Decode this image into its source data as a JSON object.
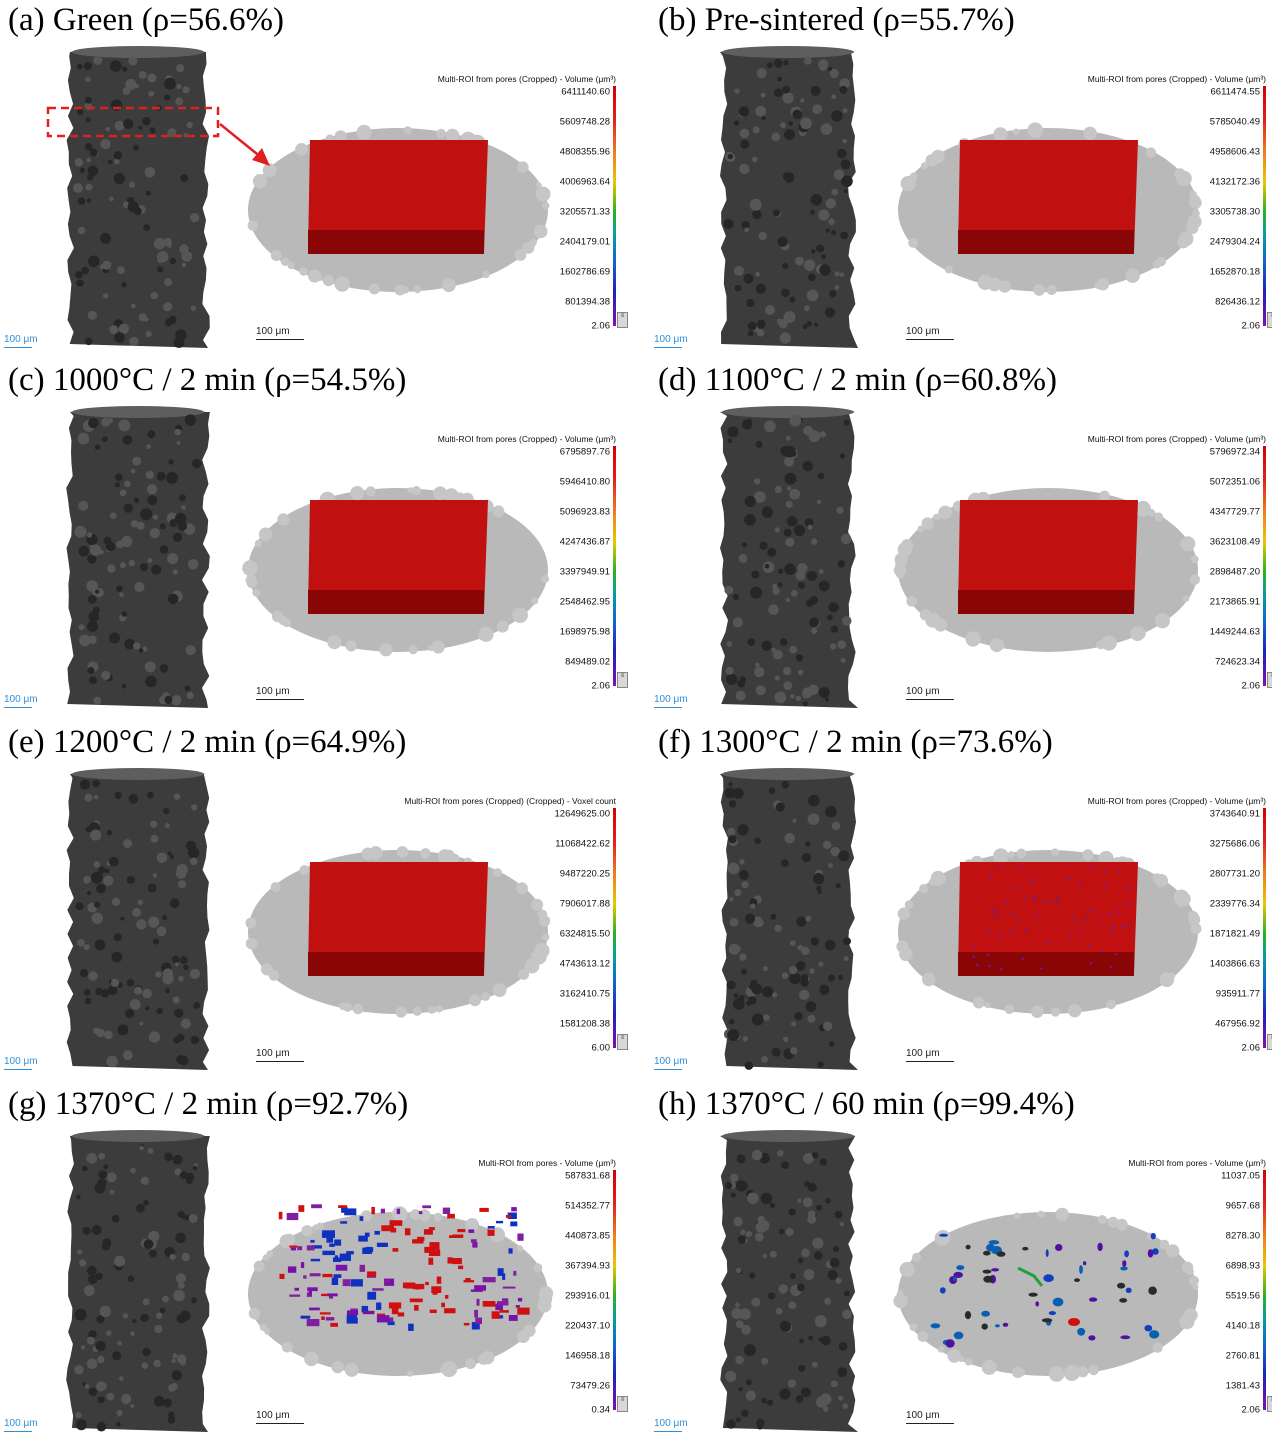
{
  "panels": [
    {
      "title": "(a) Green (ρ=56.6%)",
      "column_scale": "100 μm",
      "roi_scale": "100 μm",
      "colorbar_title": "Multi-ROI from pores (Cropped) - Volume (μm³)",
      "colorbar_ticks": [
        "6411140.60",
        "5609748.28",
        "4808355.96",
        "4006963.64",
        "3205571.33",
        "2404179.01",
        "1602786.69",
        "801394.38",
        "2.06"
      ],
      "pore_fill": "red-block"
    },
    {
      "title": "(b) Pre-sintered (ρ=55.7%)",
      "column_scale": "100 μm",
      "roi_scale": "100 μm",
      "colorbar_title": "Multi-ROI from pores (Cropped) - Volume (μm³)",
      "colorbar_ticks": [
        "6611474.55",
        "5785040.49",
        "4958606.43",
        "4132172.36",
        "3305738.30",
        "2479304.24",
        "1652870.18",
        "826436.12",
        "2.06"
      ],
      "pore_fill": "red-block"
    },
    {
      "title": "(c) 1000°C / 2 min (ρ=54.5%)",
      "column_scale": "100 μm",
      "roi_scale": "100 μm",
      "colorbar_title": "Multi-ROI from pores (Cropped) - Volume (μm³)",
      "colorbar_ticks": [
        "6795897.76",
        "5946410.80",
        "5096923.83",
        "4247436.87",
        "3397949.91",
        "2548462.95",
        "1698975.98",
        "849489.02",
        "2.06"
      ],
      "pore_fill": "red-block"
    },
    {
      "title": "(d) 1100°C / 2 min (ρ=60.8%)",
      "column_scale": "100 μm",
      "roi_scale": "100 μm",
      "colorbar_title": "Multi-ROI from pores (Cropped) - Volume (μm³)",
      "colorbar_ticks": [
        "5796972.34",
        "5072351.06",
        "4347729.77",
        "3623108.49",
        "2898487.20",
        "2173865.91",
        "1449244.63",
        "724623.34",
        "2.06"
      ],
      "pore_fill": "red-block"
    },
    {
      "title": "(e) 1200°C / 2 min (ρ=64.9%)",
      "column_scale": "100 μm",
      "roi_scale": "100 μm",
      "colorbar_title": "Multi-ROI from pores (Cropped) (Cropped) - Voxel count",
      "colorbar_ticks": [
        "12649625.00",
        "11068422.62",
        "9487220.25",
        "7906017.88",
        "6324815.50",
        "4743613.12",
        "3162410.75",
        "1581208.38",
        "6.00"
      ],
      "pore_fill": "red-block"
    },
    {
      "title": "(f) 1300°C / 2 min (ρ=73.6%)",
      "column_scale": "100 μm",
      "roi_scale": "100 μm",
      "colorbar_title": "Multi-ROI from pores (Cropped) - Volume (μm³)",
      "colorbar_ticks": [
        "3743640.91",
        "3275686.06",
        "2807731.20",
        "2339776.34",
        "1871821.49",
        "1403866.63",
        "935911.77",
        "467956.92",
        "2.06"
      ],
      "pore_fill": "red-block-speckled"
    },
    {
      "title": "(g) 1370°C / 2 min (ρ=92.7%)",
      "column_scale": "100 μm",
      "roi_scale": "100 μm",
      "colorbar_title": "Multi-ROI from pores - Volume (μm³)",
      "colorbar_ticks": [
        "587831.68",
        "514352.77",
        "440873.85",
        "367394.93",
        "293916.01",
        "220437.10",
        "146958.18",
        "73479.26",
        "0.34"
      ],
      "pore_fill": "scattered-network"
    },
    {
      "title": "(h) 1370°C / 60 min (ρ=99.4%)",
      "column_scale": "100 μm",
      "roi_scale": "100 μm",
      "colorbar_title": "Multi-ROI from pores - Volume (μm³)",
      "colorbar_ticks": [
        "11037.05",
        "9657.68",
        "8278.30",
        "6898.93",
        "5519.56",
        "4140.18",
        "2760.81",
        "1381.43",
        "2.06"
      ],
      "pore_fill": "isolated-pores"
    }
  ],
  "colors": {
    "column": "#3c3c3c",
    "disk": "#b9b9b9",
    "pore_red": "#c01010",
    "callout": "#e02020",
    "scale_blue": "#2f8fd8"
  }
}
